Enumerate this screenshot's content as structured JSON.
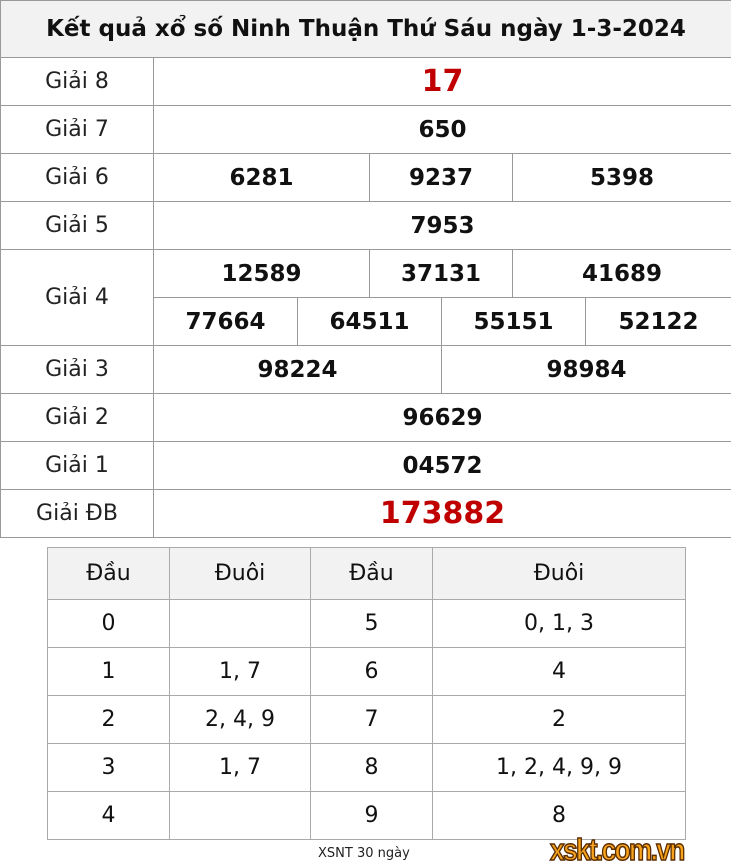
{
  "title": "Kết quả xổ số Ninh Thuận Thứ Sáu ngày 1-3-2024",
  "prizes": {
    "g8": {
      "label": "Giải 8",
      "value": "17"
    },
    "g7": {
      "label": "Giải 7",
      "value": "650"
    },
    "g6": {
      "label": "Giải 6",
      "values": [
        "6281",
        "9237",
        "5398"
      ]
    },
    "g5": {
      "label": "Giải 5",
      "value": "7953"
    },
    "g4": {
      "label": "Giải 4",
      "values": [
        "12589",
        "37131",
        "41689",
        "77664",
        "64511",
        "55151",
        "52122"
      ]
    },
    "g3": {
      "label": "Giải 3",
      "values": [
        "98224",
        "98984"
      ]
    },
    "g2": {
      "label": "Giải 2",
      "value": "96629"
    },
    "g1": {
      "label": "Giải 1",
      "value": "04572"
    },
    "gdb": {
      "label": "Giải ĐB",
      "value": "173882"
    }
  },
  "loto": {
    "headers": [
      "Đầu",
      "Đuôi",
      "Đầu",
      "Đuôi"
    ],
    "rows": [
      [
        "0",
        "",
        "5",
        "0, 1, 3"
      ],
      [
        "1",
        "1, 7",
        "6",
        "4"
      ],
      [
        "2",
        "2, 4, 9",
        "7",
        "2"
      ],
      [
        "3",
        "1, 7",
        "8",
        "1, 2, 4, 9, 9"
      ],
      [
        "4",
        "",
        "9",
        "8"
      ]
    ]
  },
  "footer_link": "XSNT 30 ngày",
  "logo_text": "xskt.com.vn",
  "colors": {
    "special": "#c00000",
    "header_bg": "#f2f2f2",
    "logo": "#f7a21b"
  }
}
